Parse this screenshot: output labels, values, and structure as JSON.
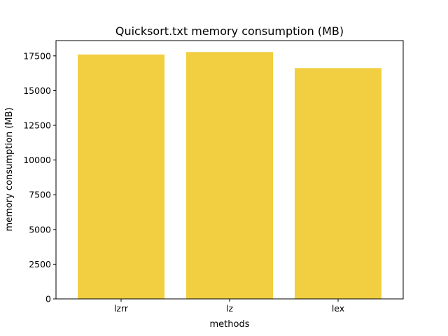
{
  "chart_data": {
    "type": "bar",
    "title": "Quicksort.txt memory consumption (MB)",
    "xlabel": "methods",
    "ylabel": "memory consumption (MB)",
    "categories": [
      "lzrr",
      "lz",
      "lex"
    ],
    "values": [
      17600,
      17780,
      16620
    ],
    "ylim": [
      0,
      18600
    ],
    "yticks": [
      0,
      2500,
      5000,
      7500,
      10000,
      12500,
      15000,
      17500
    ],
    "ytick_labels": [
      "0",
      "2500",
      "5000",
      "7500",
      "10000",
      "12500",
      "15000",
      "17500"
    ],
    "grid": false,
    "bar_color": "#f2cf41"
  }
}
